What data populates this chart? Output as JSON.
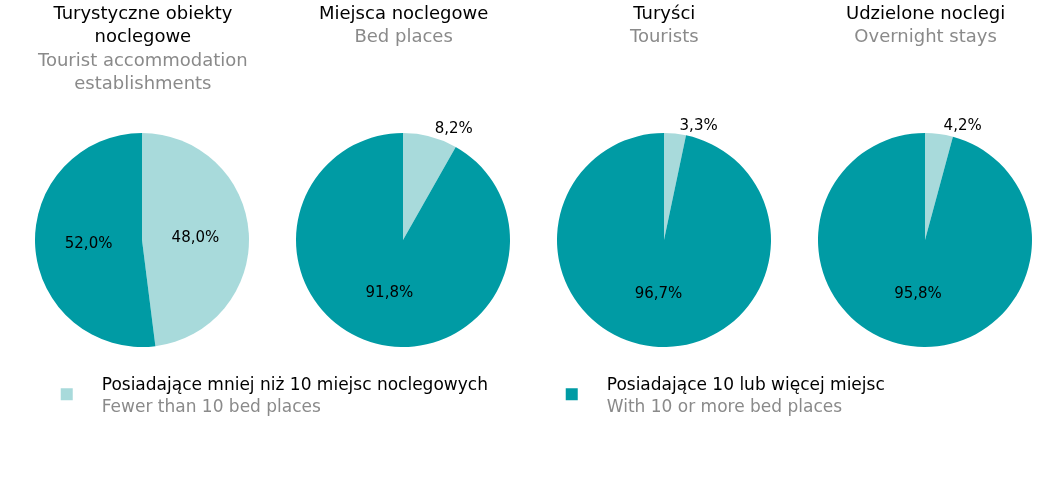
{
  "chart_data": [
    {
      "type": "pie",
      "title": "Turystyczne obiekty noclegowe",
      "subtitle": "Tourist accommodation establishments",
      "categories": [
        "Posiadające mniej niż 10 miejsc noclegowych\nFewer than 10 bed places",
        "Posiadające 10 lub więcej miejsc\nWith 10 or more bed places"
      ],
      "values": [
        48.0,
        52.0
      ],
      "value_labels": [
        "48,0%",
        "52,0%"
      ],
      "colors": [
        "#a8dadb",
        "#009ba4"
      ],
      "legend": "bottom"
    },
    {
      "type": "pie",
      "title": "Miejsca noclegowe",
      "subtitle": "Bed places",
      "categories": [
        null,
        null
      ],
      "values": [
        8.2,
        91.8
      ],
      "value_labels": [
        "8,2%",
        "91,8%"
      ],
      "colors": [
        "#a8dadb",
        "#009ba4"
      ]
    },
    {
      "type": "pie",
      "title": "Turyści",
      "subtitle": "Tourists",
      "categories": [
        null,
        null
      ],
      "values": [
        3.3,
        96.7
      ],
      "value_labels": [
        "3,3%",
        "96,7%"
      ],
      "colors": [
        "#a8dadb",
        "#009ba4"
      ]
    },
    {
      "type": "pie",
      "title": "Udzielone noclegi",
      "subtitle": "Overnight stays",
      "categories": [
        null,
        null
      ],
      "values": [
        4.2,
        95.8
      ],
      "value_labels": [
        "4,2%",
        "95,8%"
      ],
      "colors": [
        "#a8dadb",
        "#009ba4"
      ]
    }
  ]
}
